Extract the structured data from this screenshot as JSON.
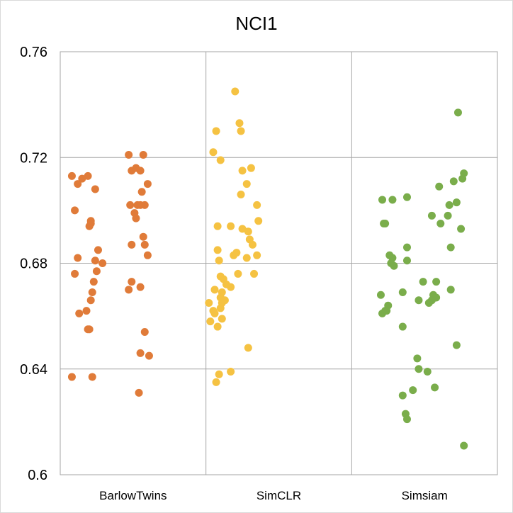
{
  "chart_data": {
    "type": "scatter",
    "title": "NCI1",
    "xlabel": "",
    "ylabel": "",
    "categories": [
      "BarlowTwins",
      "SimCLR",
      "Simsiam"
    ],
    "ylim": [
      0.6,
      0.76
    ],
    "yticks": [
      {
        "value": 0.6,
        "label": "0.6"
      },
      {
        "value": 0.64,
        "label": "0.64"
      },
      {
        "value": 0.68,
        "label": "0.68"
      },
      {
        "value": 0.72,
        "label": "0.72"
      },
      {
        "value": 0.76,
        "label": "0.76"
      }
    ],
    "grid": true,
    "legend": "none",
    "series": [
      {
        "color": "#E07B39",
        "points": [
          {
            "x": 0.08,
            "y": 0.713
          },
          {
            "x": 0.1,
            "y": 0.7
          },
          {
            "x": 0.12,
            "y": 0.71
          },
          {
            "x": 0.15,
            "y": 0.712
          },
          {
            "x": 0.19,
            "y": 0.713
          },
          {
            "x": 0.2,
            "y": 0.694
          },
          {
            "x": 0.21,
            "y": 0.696
          },
          {
            "x": 0.47,
            "y": 0.721
          },
          {
            "x": 0.57,
            "y": 0.721
          },
          {
            "x": 0.6,
            "y": 0.71
          },
          {
            "x": 0.24,
            "y": 0.708
          },
          {
            "x": 0.58,
            "y": 0.702
          },
          {
            "x": 0.12,
            "y": 0.682
          },
          {
            "x": 0.1,
            "y": 0.676
          },
          {
            "x": 0.13,
            "y": 0.661
          },
          {
            "x": 0.21,
            "y": 0.695
          },
          {
            "x": 0.26,
            "y": 0.685
          },
          {
            "x": 0.29,
            "y": 0.68
          },
          {
            "x": 0.23,
            "y": 0.673
          },
          {
            "x": 0.25,
            "y": 0.677
          },
          {
            "x": 0.24,
            "y": 0.681
          },
          {
            "x": 0.22,
            "y": 0.669
          },
          {
            "x": 0.21,
            "y": 0.666
          },
          {
            "x": 0.18,
            "y": 0.662
          },
          {
            "x": 0.19,
            "y": 0.655
          },
          {
            "x": 0.2,
            "y": 0.655
          },
          {
            "x": 0.08,
            "y": 0.637
          },
          {
            "x": 0.22,
            "y": 0.637
          },
          {
            "x": 0.49,
            "y": 0.715
          },
          {
            "x": 0.52,
            "y": 0.716
          },
          {
            "x": 0.55,
            "y": 0.715
          },
          {
            "x": 0.48,
            "y": 0.702
          },
          {
            "x": 0.51,
            "y": 0.699
          },
          {
            "x": 0.53,
            "y": 0.702
          },
          {
            "x": 0.52,
            "y": 0.697
          },
          {
            "x": 0.55,
            "y": 0.702
          },
          {
            "x": 0.56,
            "y": 0.707
          },
          {
            "x": 0.49,
            "y": 0.687
          },
          {
            "x": 0.57,
            "y": 0.69
          },
          {
            "x": 0.58,
            "y": 0.687
          },
          {
            "x": 0.6,
            "y": 0.683
          },
          {
            "x": 0.49,
            "y": 0.673
          },
          {
            "x": 0.47,
            "y": 0.67
          },
          {
            "x": 0.55,
            "y": 0.671
          },
          {
            "x": 0.58,
            "y": 0.654
          },
          {
            "x": 0.55,
            "y": 0.646
          },
          {
            "x": 0.61,
            "y": 0.645
          },
          {
            "x": 0.54,
            "y": 0.631
          }
        ]
      },
      {
        "color": "#F5C242",
        "points": [
          {
            "x": 1.2,
            "y": 0.745
          },
          {
            "x": 1.23,
            "y": 0.733
          },
          {
            "x": 1.24,
            "y": 0.73
          },
          {
            "x": 1.07,
            "y": 0.73
          },
          {
            "x": 1.05,
            "y": 0.722
          },
          {
            "x": 1.1,
            "y": 0.719
          },
          {
            "x": 1.25,
            "y": 0.715
          },
          {
            "x": 1.28,
            "y": 0.71
          },
          {
            "x": 1.31,
            "y": 0.716
          },
          {
            "x": 1.24,
            "y": 0.706
          },
          {
            "x": 1.35,
            "y": 0.702
          },
          {
            "x": 1.36,
            "y": 0.696
          },
          {
            "x": 1.08,
            "y": 0.694
          },
          {
            "x": 1.17,
            "y": 0.694
          },
          {
            "x": 1.25,
            "y": 0.693
          },
          {
            "x": 1.29,
            "y": 0.692
          },
          {
            "x": 1.3,
            "y": 0.689
          },
          {
            "x": 1.32,
            "y": 0.687
          },
          {
            "x": 1.35,
            "y": 0.683
          },
          {
            "x": 1.08,
            "y": 0.685
          },
          {
            "x": 1.09,
            "y": 0.681
          },
          {
            "x": 1.19,
            "y": 0.683
          },
          {
            "x": 1.21,
            "y": 0.684
          },
          {
            "x": 1.28,
            "y": 0.682
          },
          {
            "x": 1.1,
            "y": 0.675
          },
          {
            "x": 1.12,
            "y": 0.674
          },
          {
            "x": 1.06,
            "y": 0.67
          },
          {
            "x": 1.14,
            "y": 0.672
          },
          {
            "x": 1.11,
            "y": 0.669
          },
          {
            "x": 1.17,
            "y": 0.671
          },
          {
            "x": 1.22,
            "y": 0.676
          },
          {
            "x": 1.33,
            "y": 0.676
          },
          {
            "x": 1.02,
            "y": 0.665
          },
          {
            "x": 1.06,
            "y": 0.661
          },
          {
            "x": 1.1,
            "y": 0.667
          },
          {
            "x": 1.11,
            "y": 0.665
          },
          {
            "x": 1.13,
            "y": 0.666
          },
          {
            "x": 1.1,
            "y": 0.663
          },
          {
            "x": 1.11,
            "y": 0.659
          },
          {
            "x": 1.03,
            "y": 0.658
          },
          {
            "x": 1.08,
            "y": 0.656
          },
          {
            "x": 1.05,
            "y": 0.662
          },
          {
            "x": 1.29,
            "y": 0.648
          },
          {
            "x": 1.17,
            "y": 0.639
          },
          {
            "x": 1.09,
            "y": 0.638
          },
          {
            "x": 1.07,
            "y": 0.635
          }
        ]
      },
      {
        "color": "#7AAD4B",
        "points": [
          {
            "x": 2.73,
            "y": 0.737
          },
          {
            "x": 2.77,
            "y": 0.714
          },
          {
            "x": 2.76,
            "y": 0.712
          },
          {
            "x": 2.7,
            "y": 0.711
          },
          {
            "x": 2.6,
            "y": 0.709
          },
          {
            "x": 2.72,
            "y": 0.703
          },
          {
            "x": 2.67,
            "y": 0.702
          },
          {
            "x": 2.66,
            "y": 0.698
          },
          {
            "x": 2.55,
            "y": 0.698
          },
          {
            "x": 2.61,
            "y": 0.695
          },
          {
            "x": 2.75,
            "y": 0.693
          },
          {
            "x": 2.68,
            "y": 0.686
          },
          {
            "x": 2.21,
            "y": 0.704
          },
          {
            "x": 2.28,
            "y": 0.704
          },
          {
            "x": 2.23,
            "y": 0.695
          },
          {
            "x": 2.22,
            "y": 0.695
          },
          {
            "x": 2.38,
            "y": 0.705
          },
          {
            "x": 2.38,
            "y": 0.686
          },
          {
            "x": 2.26,
            "y": 0.683
          },
          {
            "x": 2.28,
            "y": 0.682
          },
          {
            "x": 2.27,
            "y": 0.68
          },
          {
            "x": 2.29,
            "y": 0.679
          },
          {
            "x": 2.38,
            "y": 0.681
          },
          {
            "x": 2.49,
            "y": 0.673
          },
          {
            "x": 2.58,
            "y": 0.673
          },
          {
            "x": 2.68,
            "y": 0.67
          },
          {
            "x": 2.35,
            "y": 0.669
          },
          {
            "x": 2.2,
            "y": 0.668
          },
          {
            "x": 2.46,
            "y": 0.666
          },
          {
            "x": 2.56,
            "y": 0.668
          },
          {
            "x": 2.55,
            "y": 0.666
          },
          {
            "x": 2.58,
            "y": 0.667
          },
          {
            "x": 2.53,
            "y": 0.665
          },
          {
            "x": 2.25,
            "y": 0.664
          },
          {
            "x": 2.23,
            "y": 0.662
          },
          {
            "x": 2.21,
            "y": 0.661
          },
          {
            "x": 2.24,
            "y": 0.662
          },
          {
            "x": 2.35,
            "y": 0.656
          },
          {
            "x": 2.72,
            "y": 0.649
          },
          {
            "x": 2.45,
            "y": 0.644
          },
          {
            "x": 2.46,
            "y": 0.64
          },
          {
            "x": 2.52,
            "y": 0.639
          },
          {
            "x": 2.57,
            "y": 0.633
          },
          {
            "x": 2.42,
            "y": 0.632
          },
          {
            "x": 2.35,
            "y": 0.63
          },
          {
            "x": 2.37,
            "y": 0.623
          },
          {
            "x": 2.38,
            "y": 0.621
          },
          {
            "x": 2.77,
            "y": 0.611
          }
        ]
      }
    ]
  }
}
